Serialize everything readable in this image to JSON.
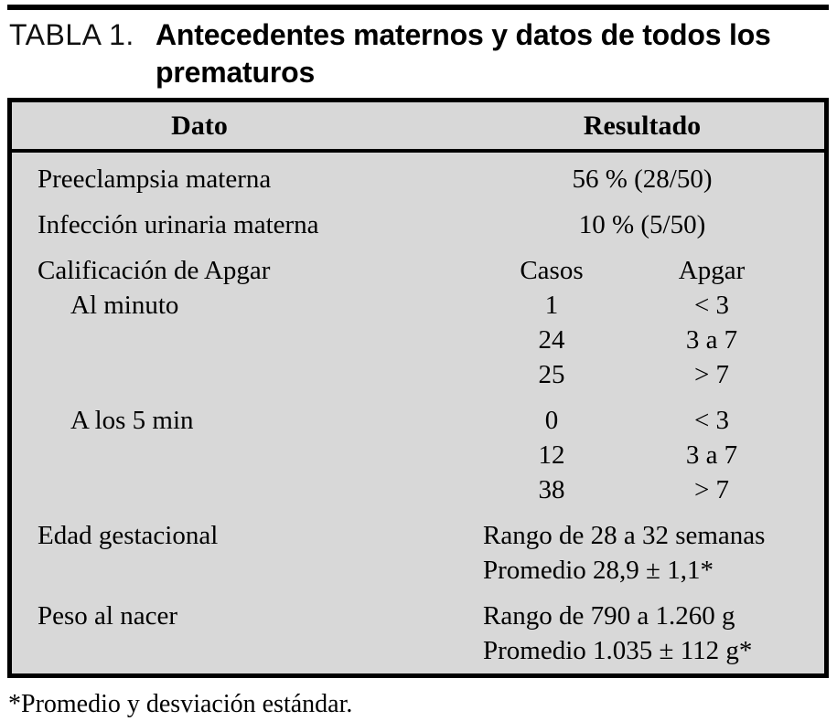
{
  "header": {
    "label": "TABLA 1.",
    "title": "Antecedentes maternos y datos de todos los prematuros"
  },
  "colors": {
    "table_bg": "#d8d8d8",
    "border": "#000000",
    "page_bg": "#ffffff"
  },
  "table": {
    "columns": {
      "dato": "Dato",
      "resultado": "Resultado"
    },
    "rows": {
      "preeclampsia": {
        "label": "Preeclampsia materna",
        "value": "56 % (28/50)"
      },
      "infeccion": {
        "label": "Infección urinaria materna",
        "value": "10 % (5/50)"
      },
      "apgar": {
        "label": "Calificación de Apgar",
        "col_casos": "Casos",
        "col_apgar": "Apgar",
        "groups": [
          {
            "label": "Al minuto",
            "entries": [
              {
                "casos": "1",
                "apgar": "< 3"
              },
              {
                "casos": "24",
                "apgar": "3 a 7"
              },
              {
                "casos": "25",
                "apgar": "> 7"
              }
            ]
          },
          {
            "label": "A los 5 min",
            "entries": [
              {
                "casos": "0",
                "apgar": "< 3"
              },
              {
                "casos": "12",
                "apgar": "3 a 7"
              },
              {
                "casos": "38",
                "apgar": "> 7"
              }
            ]
          }
        ]
      },
      "edad": {
        "label": "Edad gestacional",
        "lines": [
          "Rango de 28 a 32 semanas",
          "Promedio 28,9 ± 1,1*"
        ]
      },
      "peso": {
        "label": "Peso al nacer",
        "lines": [
          "Rango de 790 a 1.260 g",
          "Promedio 1.035 ± 112 g*"
        ]
      }
    }
  },
  "footnote": "*Promedio y desviación estándar."
}
